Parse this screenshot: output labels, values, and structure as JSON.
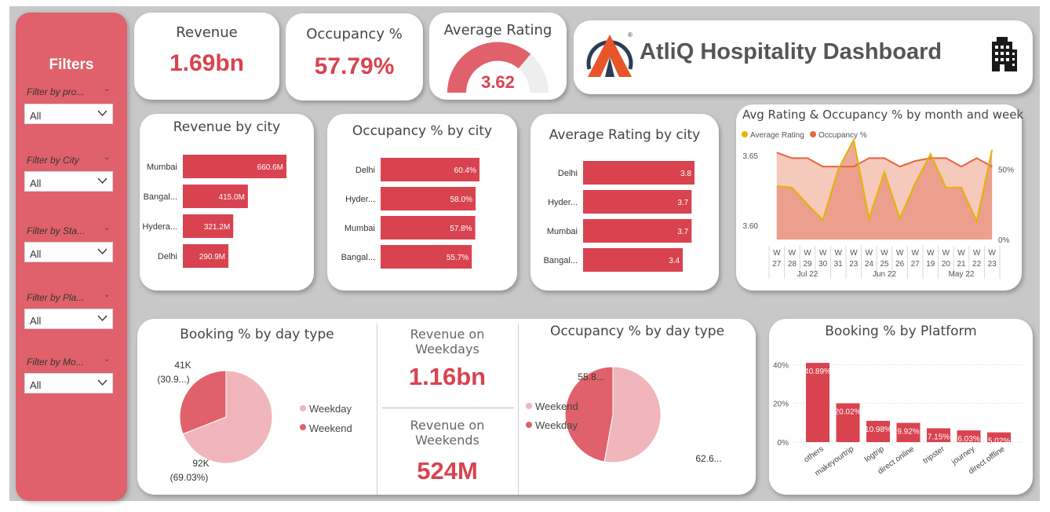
{
  "sidebar": {
    "title": "Filters",
    "filters": [
      {
        "label": "Filter by pro...",
        "value": "All"
      },
      {
        "label": "Filter by City",
        "value": "All"
      },
      {
        "label": "Filter by Sta...",
        "value": "All"
      },
      {
        "label": "Filter by Pla...",
        "value": "All"
      },
      {
        "label": "Filter by Mo...",
        "value": "All"
      }
    ]
  },
  "kpis": {
    "revenue_title": "Revenue",
    "revenue_value": "1.69bn",
    "occupancy_title": "Occupancy %",
    "occupancy_value": "57.79%",
    "rating_title": "Average Rating",
    "rating_value": "3.62",
    "revenue_weekdays_title": "Revenue on Weekdays",
    "revenue_weekdays_value": "1.16bn",
    "revenue_weekends_title": "Revenue on Weekends",
    "revenue_weekends_value": "524M"
  },
  "header": {
    "title": "AtliQ Hospitality Dashboard",
    "logo_icon": "atliq-logo",
    "building_icon": "building-icon"
  },
  "colors": {
    "accent": "#d8434f",
    "sidebar": "#e0616b",
    "pie_light": "#f0b6bb",
    "pie_dark": "#e0616b",
    "rating_line": "#e3b400",
    "occupancy_line": "#e8643c"
  },
  "chart_data": [
    {
      "id": "revenue_by_city",
      "type": "bar",
      "orientation": "horizontal",
      "title": "Revenue by city",
      "categories": [
        "Mumbai",
        "Bangal...",
        "Hydera...",
        "Delhi"
      ],
      "values": [
        660.6,
        415.0,
        321.2,
        290.9
      ],
      "labels": [
        "660.6M",
        "415.0M",
        "321.2M",
        "290.9M"
      ]
    },
    {
      "id": "occupancy_by_city",
      "type": "bar",
      "orientation": "horizontal",
      "title": "Occupancy % by city",
      "categories": [
        "Delhi",
        "Hyder...",
        "Mumbai",
        "Bangal..."
      ],
      "values": [
        60.4,
        58.0,
        57.8,
        55.7
      ],
      "labels": [
        "60.4%",
        "58.0%",
        "57.8%",
        "55.7%"
      ]
    },
    {
      "id": "rating_by_city",
      "type": "bar",
      "orientation": "horizontal",
      "title": "Average Rating by city",
      "categories": [
        "Delhi",
        "Hyder...",
        "Mumbai",
        "Bangal..."
      ],
      "values": [
        3.8,
        3.7,
        3.7,
        3.4
      ],
      "labels": [
        "3.8",
        "3.7",
        "3.7",
        "3.4"
      ]
    },
    {
      "id": "rating_occupancy_trend",
      "type": "line",
      "title": "Avg Rating & Occupancy % by month and week",
      "legend": [
        "Average Rating",
        "Occupancy %"
      ],
      "week_labels": [
        "27",
        "28",
        "29",
        "30",
        "31",
        "23",
        "24",
        "25",
        "26",
        "27",
        "19",
        "20",
        "21",
        "22",
        "23"
      ],
      "week_prefix": "W",
      "months": [
        {
          "label": "Jul 22",
          "span": 5
        },
        {
          "label": "Jun 22",
          "span": 5
        },
        {
          "label": "May 22",
          "span": 5
        }
      ],
      "y_left_ticks": [
        "3.65",
        "3.60"
      ],
      "y_left_range": [
        3.59,
        3.66
      ],
      "y_right_ticks": [
        "50%",
        "0%"
      ],
      "y_right_range": [
        0,
        0.7
      ],
      "series": [
        {
          "name": "Average Rating",
          "axis": "left",
          "values": [
            3.628,
            3.627,
            3.615,
            3.604,
            3.64,
            3.661,
            3.605,
            3.638,
            3.605,
            3.63,
            3.651,
            3.627,
            3.627,
            3.603,
            3.654
          ]
        },
        {
          "name": "Occupancy %",
          "axis": "right",
          "values": [
            0.62,
            0.58,
            0.58,
            0.52,
            0.52,
            0.52,
            0.58,
            0.58,
            0.52,
            0.56,
            0.58,
            0.58,
            0.52,
            0.58,
            0.52
          ]
        }
      ]
    },
    {
      "id": "booking_by_day_type",
      "type": "pie",
      "title": "Booking % by day type",
      "legend": [
        "Weekday",
        "Weekend"
      ],
      "values": [
        69.03,
        30.97
      ],
      "labels": [
        [
          "92K",
          "(69.03%)"
        ],
        [
          "41K",
          "(30.9...)"
        ]
      ]
    },
    {
      "id": "occupancy_by_day_type",
      "type": "pie",
      "title": "Occupancy % by day type",
      "legend": [
        "Weekend",
        "Weekday"
      ],
      "values": [
        62.6,
        55.8
      ],
      "labels": [
        "62.6...",
        "55.8..."
      ]
    },
    {
      "id": "booking_by_platform",
      "type": "bar",
      "title": "Booking % by Platform",
      "categories": [
        "others",
        "makeyourtrip",
        "logtrip",
        "direct online",
        "tripster",
        "journey",
        "direct offline"
      ],
      "values": [
        40.89,
        20.02,
        10.98,
        9.92,
        7.15,
        6.03,
        5.02
      ],
      "labels": [
        "40.89%",
        "20.02%",
        "10.98%",
        "9.92%",
        "7.15%",
        "6.03%",
        "5.02%"
      ],
      "y_ticks": [
        "40%",
        "20%",
        "0%"
      ],
      "ylim": [
        0,
        45
      ]
    }
  ]
}
